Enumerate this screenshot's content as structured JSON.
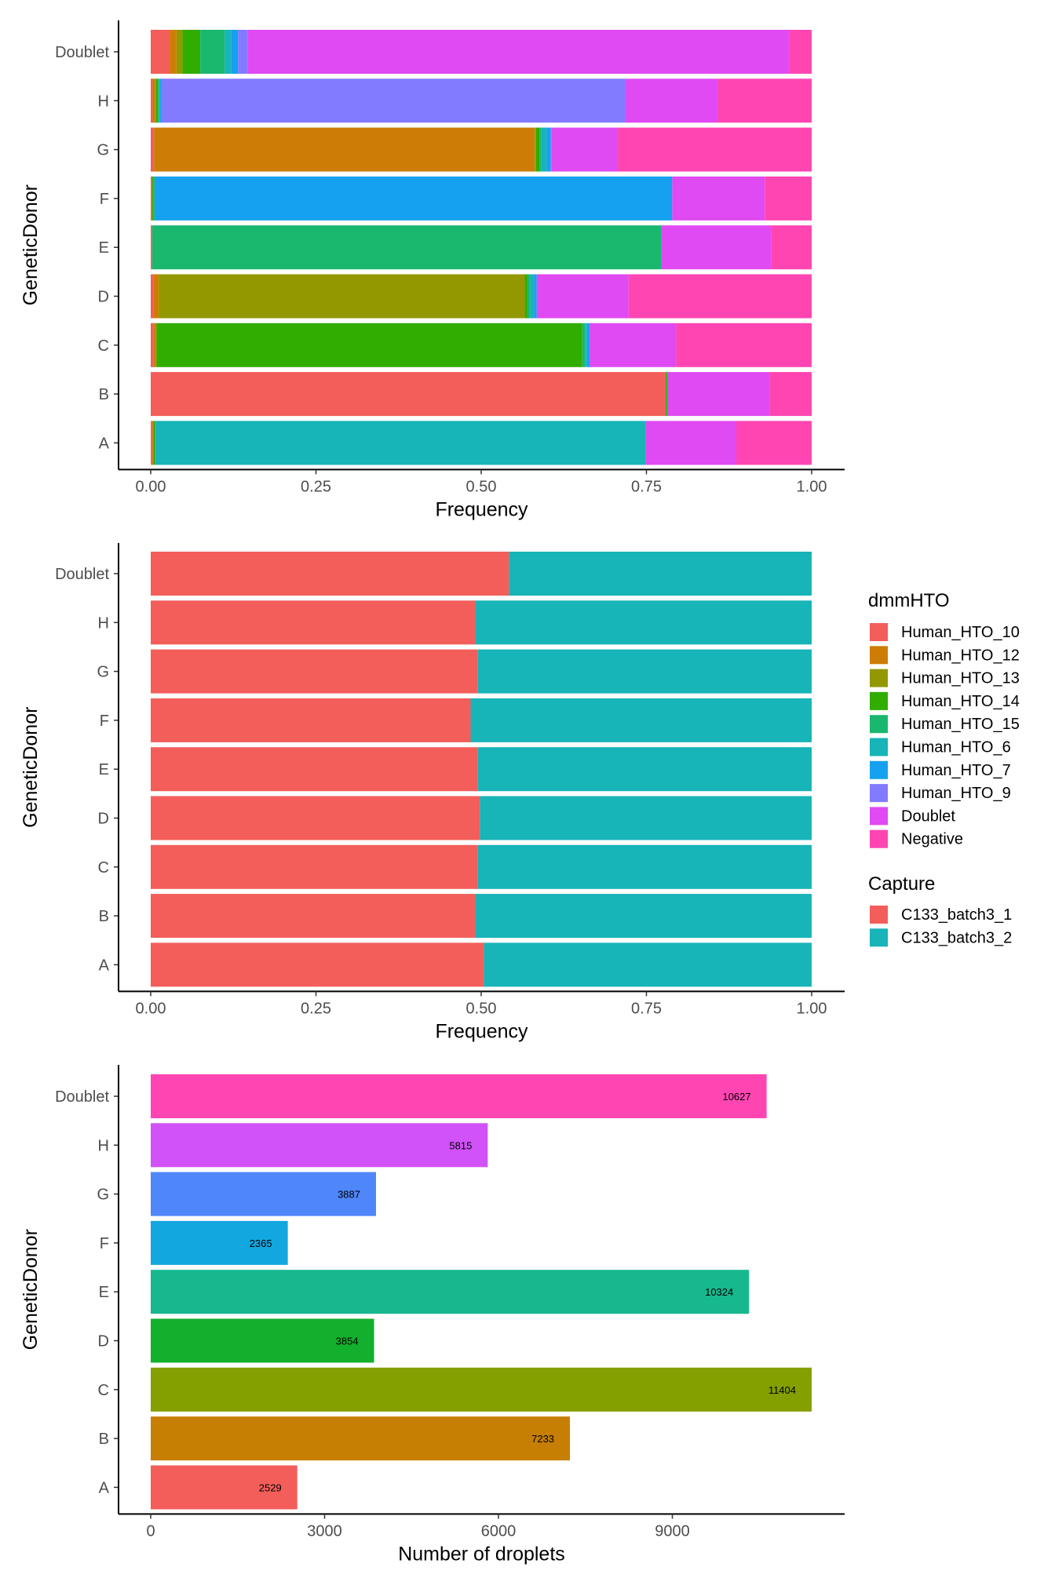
{
  "legend_dmmHTO": {
    "title": "dmmHTO",
    "items": [
      {
        "name": "Human_HTO_10",
        "color": "#F35E5A"
      },
      {
        "name": "Human_HTO_12",
        "color": "#CD7D05"
      },
      {
        "name": "Human_HTO_13",
        "color": "#939800"
      },
      {
        "name": "Human_HTO_14",
        "color": "#31AC00"
      },
      {
        "name": "Human_HTO_15",
        "color": "#1AB76E"
      },
      {
        "name": "Human_HTO_6",
        "color": "#17B4B8"
      },
      {
        "name": "Human_HTO_7",
        "color": "#15A1EF"
      },
      {
        "name": "Human_HTO_9",
        "color": "#837BFF"
      },
      {
        "name": "Doublet",
        "color": "#E04AF2"
      },
      {
        "name": "Negative",
        "color": "#FF45B2"
      }
    ]
  },
  "legend_capture": {
    "title": "Capture",
    "items": [
      {
        "name": "C133_batch3_1",
        "color": "#F35E5A"
      },
      {
        "name": "C133_batch3_2",
        "color": "#17B4B8"
      }
    ]
  },
  "chart_data": [
    {
      "type": "bar",
      "orientation": "horizontal",
      "stacked": true,
      "xlabel": "Frequency",
      "ylabel": "GeneticDonor",
      "xlim": [
        0,
        1
      ],
      "xticks": [
        "0.00",
        "0.25",
        "0.50",
        "0.75",
        "1.00"
      ],
      "categories": [
        "Doublet",
        "H",
        "G",
        "F",
        "E",
        "D",
        "C",
        "B",
        "A"
      ],
      "series": [
        {
          "name": "Human_HTO_10",
          "values": [
            0.029,
            0.003,
            0.005,
            0.002,
            0.002,
            0.004,
            0.004,
            0.779,
            0.002
          ]
        },
        {
          "name": "Human_HTO_12",
          "values": [
            0.01,
            0.003,
            0.576,
            0.0,
            0.0,
            0.008,
            0.003,
            0.0,
            0.002
          ]
        },
        {
          "name": "Human_HTO_13",
          "values": [
            0.009,
            0.002,
            0.002,
            0.0,
            0.0,
            0.554,
            0.002,
            0.0,
            0.0
          ]
        },
        {
          "name": "Human_HTO_14",
          "values": [
            0.027,
            0.003,
            0.005,
            0.002,
            0.0,
            0.004,
            0.644,
            0.002,
            0.002
          ]
        },
        {
          "name": "Human_HTO_15",
          "values": [
            0.037,
            0.002,
            0.003,
            0.002,
            0.771,
            0.004,
            0.004,
            0.001,
            0.002
          ]
        },
        {
          "name": "Human_HTO_6",
          "values": [
            0.01,
            0.001,
            0.008,
            0.0,
            0.0,
            0.006,
            0.003,
            0.0,
            0.741
          ]
        },
        {
          "name": "Human_HTO_7",
          "values": [
            0.01,
            0.002,
            0.006,
            0.783,
            0.0,
            0.004,
            0.004,
            0.0,
            0.0
          ]
        },
        {
          "name": "Human_HTO_9",
          "values": [
            0.015,
            0.702,
            0.001,
            0.0,
            0.0,
            0.0,
            0.0,
            0.0,
            0.0
          ]
        },
        {
          "name": "Doublet",
          "values": [
            0.819,
            0.14,
            0.1,
            0.14,
            0.166,
            0.139,
            0.131,
            0.154,
            0.137
          ]
        },
        {
          "name": "Negative",
          "values": [
            0.034,
            0.142,
            0.294,
            0.071,
            0.061,
            0.277,
            0.205,
            0.064,
            0.114
          ]
        }
      ]
    },
    {
      "type": "bar",
      "orientation": "horizontal",
      "stacked": true,
      "xlabel": "Frequency",
      "ylabel": "GeneticDonor",
      "xlim": [
        0,
        1
      ],
      "xticks": [
        "0.00",
        "0.25",
        "0.50",
        "0.75",
        "1.00"
      ],
      "categories": [
        "Doublet",
        "H",
        "G",
        "F",
        "E",
        "D",
        "C",
        "B",
        "A"
      ],
      "series": [
        {
          "name": "C133_batch3_1",
          "values": [
            0.542,
            0.491,
            0.495,
            0.484,
            0.495,
            0.498,
            0.495,
            0.491,
            0.504
          ]
        },
        {
          "name": "C133_batch3_2",
          "values": [
            0.458,
            0.509,
            0.505,
            0.516,
            0.505,
            0.502,
            0.505,
            0.509,
            0.496
          ]
        }
      ]
    },
    {
      "type": "bar",
      "orientation": "horizontal",
      "xlabel": "Number of droplets",
      "ylabel": "GeneticDonor",
      "xlim": [
        0,
        11404
      ],
      "xticks": [
        "0",
        "3000",
        "6000",
        "9000"
      ],
      "categories": [
        "Doublet",
        "H",
        "G",
        "F",
        "E",
        "D",
        "C",
        "B",
        "A"
      ],
      "values": [
        10627,
        5815,
        3887,
        2365,
        10324,
        3854,
        11404,
        7233,
        2529
      ],
      "data_labels": [
        "10627",
        "5815",
        "3887",
        "2365",
        "10324",
        "3854",
        "11404",
        "7233",
        "2529"
      ],
      "colors": [
        "#FF45B2",
        "#D152F8",
        "#4F86FA",
        "#12A7DE",
        "#17B88E",
        "#13B02D",
        "#83A000",
        "#C77F03",
        "#F35E5A"
      ]
    }
  ]
}
